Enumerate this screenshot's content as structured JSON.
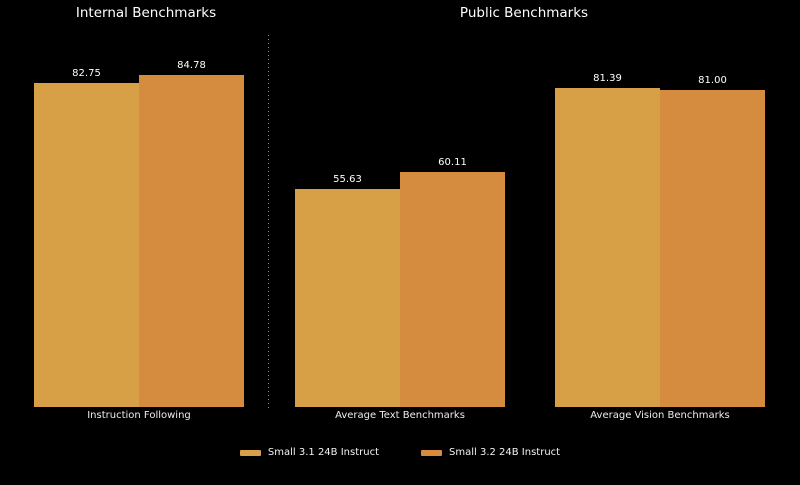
{
  "figure": {
    "background_color": "#000000",
    "text_color": "#ffffff",
    "divider_color": "#8f8f8f"
  },
  "chart_data": [
    {
      "type": "bar",
      "title": "Internal Benchmarks",
      "categories": [
        "Instruction Following"
      ],
      "series": [
        {
          "name": "Small 3.1 24B Instruct",
          "color": "#d7a047",
          "values": [
            82.75
          ]
        },
        {
          "name": "Small 3.2 24B Instruct",
          "color": "#d68c3e",
          "values": [
            84.78
          ]
        }
      ],
      "ylabel": "",
      "xlabel": "",
      "ylim": [
        0,
        95
      ],
      "grid": false,
      "value_labels": true,
      "legend_position": "bottom-center-shared"
    },
    {
      "type": "bar",
      "title": "Public Benchmarks",
      "categories": [
        "Average Text Benchmarks",
        "Average Vision Benchmarks"
      ],
      "series": [
        {
          "name": "Small 3.1 24B Instruct",
          "color": "#d7a047",
          "values": [
            55.63,
            81.39
          ]
        },
        {
          "name": "Small 3.2 24B Instruct",
          "color": "#d68c3e",
          "values": [
            60.11,
            81.0
          ]
        }
      ],
      "ylabel": "",
      "xlabel": "",
      "ylim": [
        0,
        95
      ],
      "grid": false,
      "value_labels": true,
      "legend_position": "bottom-center-shared"
    }
  ]
}
